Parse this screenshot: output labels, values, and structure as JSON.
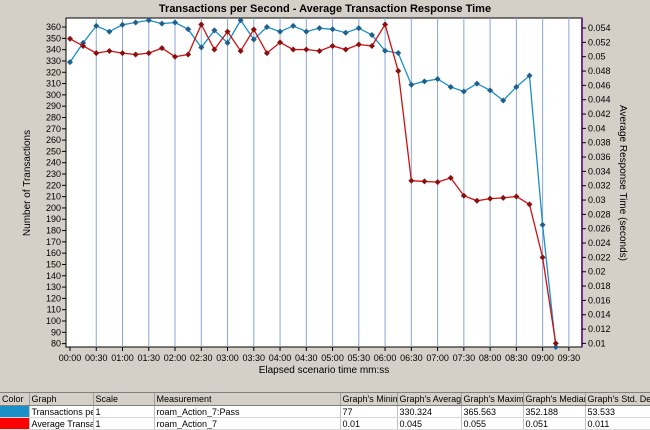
{
  "chart_data": {
    "type": "line",
    "title": "Transactions per Second - Average Transaction Response Time",
    "xlabel": "Elapsed scenario time mm:ss",
    "ylabel": "Number of Transactions",
    "y2label": "Average Response Time (seconds)",
    "x_ticks": [
      "00:00",
      "00:30",
      "01:00",
      "01:30",
      "02:00",
      "02:30",
      "03:00",
      "03:30",
      "04:00",
      "04:30",
      "05:00",
      "05:30",
      "06:00",
      "06:30",
      "07:00",
      "07:30",
      "08:00",
      "08:30",
      "09:00",
      "09:30"
    ],
    "ylim": [
      77,
      368
    ],
    "y_ticks": [
      80,
      90,
      100,
      110,
      120,
      130,
      140,
      150,
      160,
      170,
      180,
      190,
      200,
      210,
      220,
      230,
      240,
      250,
      260,
      270,
      280,
      290,
      300,
      310,
      320,
      330,
      340,
      350,
      360
    ],
    "y2lim": [
      0.0095,
      0.0554
    ],
    "y2_ticks": [
      "0.01",
      "0.012",
      "0.014",
      "0.016",
      "0.018",
      "0.02",
      "0.022",
      "0.024",
      "0.026",
      "0.028",
      "0.03",
      "0.032",
      "0.034",
      "0.036",
      "0.038",
      "0.04",
      "0.042",
      "0.044",
      "0.046",
      "0.048",
      "0.05",
      "0.052",
      "0.054"
    ],
    "grid": "vertical",
    "series": [
      {
        "name": "Transactions per Second",
        "axis": "left",
        "color": "#1a8fc8",
        "x": [
          0,
          15,
          30,
          45,
          60,
          75,
          90,
          105,
          120,
          135,
          150,
          165,
          180,
          195,
          210,
          225,
          240,
          255,
          270,
          285,
          300,
          315,
          330,
          345,
          360,
          375,
          390,
          405,
          420,
          435,
          450,
          465,
          480,
          495,
          510,
          525,
          540,
          555,
          570,
          585
        ],
        "values": [
          329,
          346,
          361,
          356,
          362,
          364,
          366,
          363,
          364,
          358,
          342,
          357,
          346,
          366,
          349,
          360,
          356,
          361,
          356,
          359,
          358,
          355,
          359,
          353,
          339,
          337,
          309,
          312,
          314,
          307,
          303,
          310,
          304,
          295,
          307,
          317,
          185,
          77,
          null,
          null
        ]
      },
      {
        "name": "Average Transaction Response Time",
        "axis": "right",
        "color": "#d01010",
        "x": [
          0,
          15,
          30,
          45,
          60,
          75,
          90,
          105,
          120,
          135,
          150,
          165,
          180,
          195,
          210,
          225,
          240,
          255,
          270,
          285,
          300,
          315,
          330,
          345,
          360,
          375,
          390,
          405,
          420,
          435,
          450,
          465,
          480,
          495,
          510,
          525,
          540,
          555,
          570,
          585
        ],
        "values": [
          0.0525,
          0.0515,
          0.0505,
          0.0508,
          0.0505,
          0.0503,
          0.0505,
          0.0512,
          0.05,
          0.0503,
          0.0545,
          0.051,
          0.0535,
          0.0508,
          0.0538,
          0.0505,
          0.052,
          0.051,
          0.051,
          0.0508,
          0.0515,
          0.051,
          0.0517,
          0.0515,
          0.0545,
          0.048,
          0.0327,
          0.0326,
          0.0325,
          0.0331,
          0.0306,
          0.0299,
          0.0302,
          0.0303,
          0.0305,
          0.0294,
          0.022,
          0.01,
          null,
          null
        ]
      }
    ]
  },
  "legend_table": {
    "headers": [
      "Color",
      "Graph",
      "Scale",
      "Measurement",
      "Graph's Minimum",
      "Graph's Average",
      "Graph's Maximum",
      "Graph's Median",
      "Graph's Std. Deviation"
    ],
    "rows": [
      {
        "color": "#1a8fc8",
        "graph": "Transactions per Second",
        "scale": "1",
        "measurement": "roam_Action_7:Pass",
        "min": "77",
        "avg": "330.324",
        "max": "365.563",
        "median": "352.188",
        "std": "53.533"
      },
      {
        "color": "#ff0000",
        "graph": "Average Transaction Response Time",
        "scale": "1",
        "measurement": "roam_Action_7",
        "min": "0.01",
        "avg": "0.045",
        "max": "0.055",
        "median": "0.051",
        "std": "0.011"
      }
    ]
  }
}
